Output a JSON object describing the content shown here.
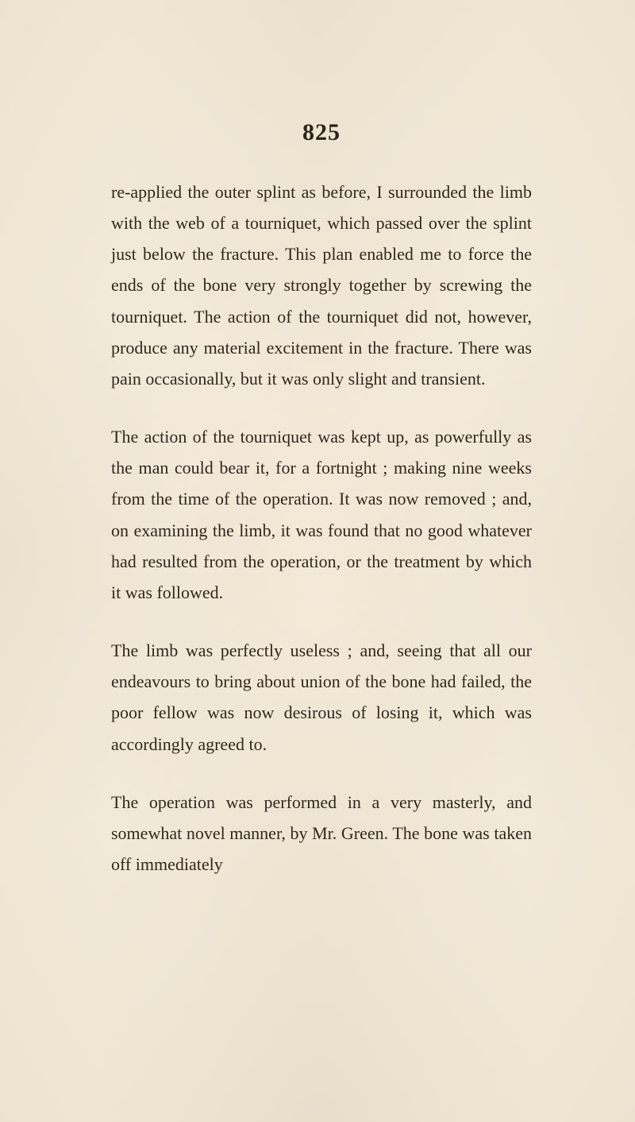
{
  "page": {
    "number": "825",
    "background_color": "#f2ead9",
    "text_color": "#2e271e",
    "page_number_fontsize": 30,
    "body_fontsize": 22,
    "line_height": 1.78,
    "font_family": "Times New Roman",
    "paragraphs": [
      "re-applied the outer splint as before, I surrounded the limb with the web of a tourniquet, which passed over the splint just below the fracture. This plan enabled me to force the ends of the bone very strongly together by screwing the tourniquet. The action of the tourniquet did not, however, produce any material excitement in the fracture. There was pain occasionally, but it was only slight and transient.",
      "The action of the tourniquet was kept up, as powerfully as the man could bear it, for a fortnight ; making nine weeks from the time of the operation. It was now removed ; and, on examining the limb, it was found that no good whatever had resulted from the operation, or the treatment by which it was followed.",
      "The limb was perfectly useless ; and, seeing that all our endeavours to bring about union of the bone had failed, the poor fellow was now desirous of losing it, which was accordingly agreed to.",
      "The operation was performed in a very masterly, and somewhat novel manner, by Mr. Green. The bone was taken off immediately"
    ]
  }
}
